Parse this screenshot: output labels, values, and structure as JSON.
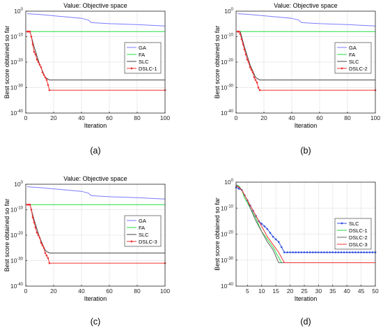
{
  "figure": {
    "panels": [
      {
        "caption": "(a)"
      },
      {
        "caption": "(b)"
      },
      {
        "caption": "(c)"
      },
      {
        "caption": "(d)"
      }
    ]
  },
  "chart_data": [
    {
      "type": "line",
      "title": "Value: Objective space",
      "xlabel": "Iteration",
      "ylabel": "Best score obtained so far",
      "y_scale": "log",
      "xlim": [
        0,
        100
      ],
      "ylim_exp": [
        -40,
        0
      ],
      "xticks": [
        0,
        20,
        40,
        60,
        80,
        100
      ],
      "yticks_exp": [
        0,
        -10,
        -20,
        -30,
        -40
      ],
      "grid": true,
      "legend_position": "center-right",
      "series": [
        {
          "name": "GA",
          "color": "#7b7bff",
          "marker": "none",
          "x": [
            1,
            10,
            20,
            30,
            40,
            45,
            47,
            60,
            80,
            100
          ],
          "y_exp": [
            -1,
            -1.3,
            -1.8,
            -2.3,
            -2.8,
            -3.5,
            -4.5,
            -4.9,
            -5.3,
            -5.8
          ]
        },
        {
          "name": "FA",
          "color": "#22dd44",
          "marker": "none",
          "x": [
            1,
            100
          ],
          "y_exp": [
            -8,
            -8
          ]
        },
        {
          "name": "SLC",
          "color": "#444444",
          "marker": "none",
          "x": [
            1,
            3,
            6,
            10,
            14,
            17,
            100
          ],
          "y_exp": [
            -8,
            -8,
            -14,
            -21,
            -26,
            -27,
            -27
          ]
        },
        {
          "name": "DSLC-1",
          "color": "#ee3030",
          "marker": "dot",
          "x": [
            1,
            2,
            3,
            4,
            5,
            6,
            7,
            8,
            9,
            10,
            11,
            12,
            13,
            14,
            15,
            16,
            17,
            100
          ],
          "y_exp": [
            -8,
            -8,
            -8,
            -10,
            -13,
            -16,
            -17,
            -19,
            -20,
            -21,
            -22,
            -24,
            -25,
            -26,
            -27,
            -29,
            -31,
            -31
          ]
        }
      ]
    },
    {
      "type": "line",
      "title": "Value: Objective space",
      "xlabel": "Iteration",
      "ylabel": "Best score obtained so far",
      "y_scale": "log",
      "xlim": [
        0,
        100
      ],
      "ylim_exp": [
        -40,
        0
      ],
      "xticks": [
        0,
        20,
        40,
        60,
        80,
        100
      ],
      "yticks_exp": [
        0,
        -10,
        -20,
        -30,
        -40
      ],
      "grid": true,
      "legend_position": "center-right",
      "series": [
        {
          "name": "GA",
          "color": "#7b7bff",
          "marker": "none",
          "x": [
            1,
            10,
            20,
            30,
            40,
            45,
            47,
            60,
            80,
            100
          ],
          "y_exp": [
            -1,
            -1.3,
            -1.8,
            -2.3,
            -2.8,
            -3.5,
            -4.5,
            -4.9,
            -5.3,
            -5.8
          ]
        },
        {
          "name": "FA",
          "color": "#22dd44",
          "marker": "none",
          "x": [
            1,
            100
          ],
          "y_exp": [
            -8,
            -8
          ]
        },
        {
          "name": "SLC",
          "color": "#444444",
          "marker": "none",
          "x": [
            1,
            3,
            6,
            10,
            14,
            17,
            100
          ],
          "y_exp": [
            -8,
            -8,
            -14,
            -21,
            -26,
            -27,
            -27
          ]
        },
        {
          "name": "DSLC-2",
          "color": "#ee3030",
          "marker": "dot",
          "x": [
            1,
            2,
            3,
            4,
            5,
            6,
            7,
            8,
            9,
            10,
            11,
            12,
            13,
            14,
            15,
            16,
            17,
            100
          ],
          "y_exp": [
            -8,
            -8,
            -9,
            -11,
            -13,
            -15,
            -17,
            -19,
            -20,
            -22,
            -23,
            -24,
            -26,
            -27,
            -28,
            -30,
            -31,
            -31
          ]
        }
      ]
    },
    {
      "type": "line",
      "title": "Value: Objective space",
      "xlabel": "Iteration",
      "ylabel": "Best score obtained so far",
      "y_scale": "log",
      "xlim": [
        0,
        100
      ],
      "ylim_exp": [
        -40,
        0
      ],
      "xticks": [
        0,
        20,
        40,
        60,
        80,
        100
      ],
      "yticks_exp": [
        0,
        -10,
        -20,
        -30,
        -40
      ],
      "grid": true,
      "legend_position": "center-right",
      "series": [
        {
          "name": "GA",
          "color": "#7b7bff",
          "marker": "none",
          "x": [
            1,
            10,
            20,
            30,
            40,
            45,
            47,
            60,
            80,
            100
          ],
          "y_exp": [
            -1,
            -1.3,
            -1.8,
            -2.3,
            -2.8,
            -3.5,
            -4.5,
            -4.9,
            -5.3,
            -5.8
          ]
        },
        {
          "name": "FA",
          "color": "#22dd44",
          "marker": "none",
          "x": [
            1,
            100
          ],
          "y_exp": [
            -8,
            -8
          ]
        },
        {
          "name": "SLC",
          "color": "#444444",
          "marker": "none",
          "x": [
            1,
            3,
            6,
            10,
            14,
            17,
            100
          ],
          "y_exp": [
            -8,
            -8,
            -14,
            -21,
            -26,
            -27,
            -27
          ]
        },
        {
          "name": "DSLC-3",
          "color": "#ee3030",
          "marker": "dot",
          "x": [
            1,
            2,
            3,
            4,
            5,
            6,
            7,
            8,
            9,
            10,
            11,
            12,
            13,
            14,
            15,
            16,
            17,
            100
          ],
          "y_exp": [
            -8,
            -8,
            -8,
            -10,
            -13,
            -15,
            -17,
            -19,
            -20,
            -21,
            -23,
            -24,
            -25,
            -27,
            -28,
            -29,
            -31,
            -31
          ]
        }
      ]
    },
    {
      "type": "line",
      "title": "",
      "xlabel": "Iteration",
      "ylabel": "Best score obtained so far",
      "y_scale": "log",
      "xlim": [
        1,
        50
      ],
      "ylim_exp": [
        -40,
        0
      ],
      "xticks": [
        5,
        10,
        15,
        20,
        25,
        30,
        35,
        40,
        45,
        50
      ],
      "yticks_exp": [
        0,
        -10,
        -20,
        -30,
        -40
      ],
      "grid": true,
      "legend_position": "center-right",
      "series": [
        {
          "name": "SLC",
          "color": "#3050e0",
          "marker": "dot",
          "x": [
            1,
            2,
            3,
            4,
            5,
            6,
            7,
            8,
            9,
            10,
            11,
            12,
            13,
            14,
            15,
            16,
            17,
            18,
            19,
            20,
            21,
            22,
            23,
            24,
            25,
            26,
            27,
            28,
            29,
            30,
            31,
            32,
            33,
            34,
            35,
            36,
            37,
            38,
            39,
            40,
            41,
            42,
            43,
            44,
            45,
            46,
            47,
            48,
            49,
            50
          ],
          "y_exp": [
            -2,
            -2.5,
            -3,
            -5,
            -7,
            -9,
            -11,
            -13,
            -15,
            -16,
            -17,
            -18,
            -19.5,
            -21,
            -22,
            -23,
            -25,
            -27,
            -27,
            -27,
            -27,
            -27,
            -27,
            -27,
            -27,
            -27,
            -27,
            -27,
            -27,
            -27,
            -27,
            -27,
            -27,
            -27,
            -27,
            -27,
            -27,
            -27,
            -27,
            -27,
            -27,
            -27,
            -27,
            -27,
            -27,
            -27,
            -27,
            -27,
            -27,
            -27
          ]
        },
        {
          "name": "DSLC-1",
          "color": "#22dd44",
          "marker": "none",
          "x": [
            1,
            2,
            3,
            4,
            5,
            6,
            8,
            10,
            12,
            14,
            16,
            17,
            50
          ],
          "y_exp": [
            -1,
            -1.5,
            -3,
            -6,
            -8,
            -10,
            -14,
            -19,
            -22,
            -25,
            -29,
            -31,
            -31
          ]
        },
        {
          "name": "DSLC-2",
          "color": "#666666",
          "marker": "none",
          "x": [
            1,
            2,
            3,
            4,
            5,
            6,
            8,
            10,
            12,
            14,
            16,
            50
          ],
          "y_exp": [
            -1,
            -1.8,
            -3,
            -5,
            -7,
            -10,
            -15,
            -19,
            -23,
            -26,
            -31,
            -31
          ]
        },
        {
          "name": "DSLC-3",
          "color": "#ee3030",
          "marker": "none",
          "x": [
            1,
            2,
            3,
            4,
            5,
            6,
            8,
            10,
            12,
            14,
            16,
            18,
            50
          ],
          "y_exp": [
            -1.5,
            -2,
            -3,
            -5,
            -7,
            -9,
            -13,
            -17,
            -21,
            -24,
            -27,
            -31,
            -31
          ]
        }
      ]
    }
  ]
}
